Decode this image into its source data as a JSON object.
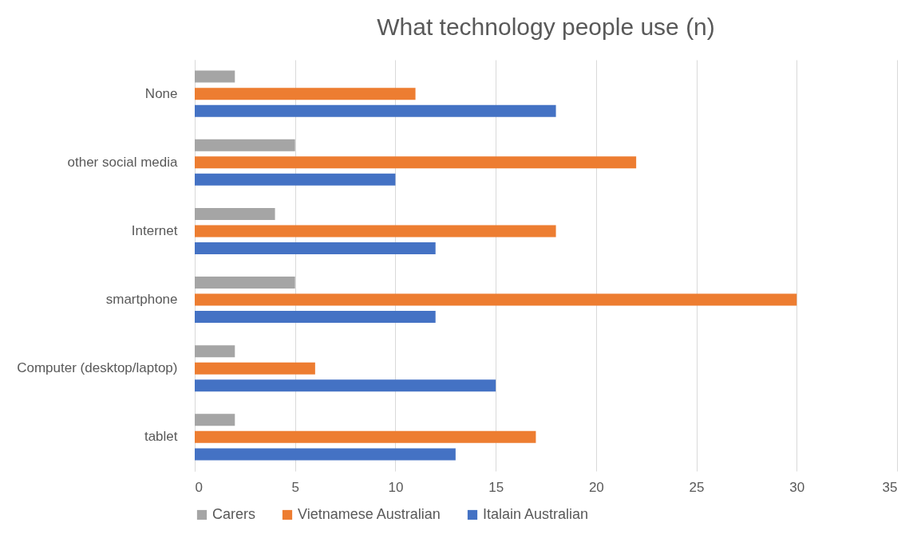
{
  "chart_data": {
    "type": "bar",
    "orientation": "horizontal",
    "title": "What technology people use (n)",
    "categories": [
      "None",
      "other social media",
      "Internet",
      "smartphone",
      "Computer (desktop/laptop)",
      "tablet"
    ],
    "series": [
      {
        "name": "Carers",
        "color": "#a5a5a5",
        "values": [
          2,
          5,
          4,
          5,
          2,
          2
        ]
      },
      {
        "name": "Vietnamese Australian",
        "color": "#ed7d31",
        "values": [
          11,
          22,
          18,
          30,
          6,
          17
        ]
      },
      {
        "name": "Italain Australian",
        "color": "#4472c4",
        "values": [
          18,
          10,
          12,
          12,
          15,
          13
        ]
      }
    ],
    "xlim": [
      0,
      35
    ],
    "xticks": [
      0,
      5,
      10,
      15,
      20,
      25,
      30,
      35
    ],
    "grid": "x",
    "legend": "bottom"
  }
}
